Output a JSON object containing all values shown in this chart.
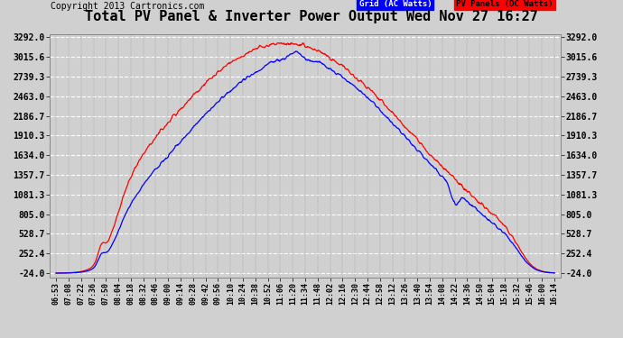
{
  "title": "Total PV Panel & Inverter Power Output Wed Nov 27 16:27",
  "copyright": "Copyright 2013 Cartronics.com",
  "legend_blue": "Grid (AC Watts)",
  "legend_red": "PV Panels (DC Watts)",
  "yticks": [
    -24.0,
    252.4,
    528.7,
    805.0,
    1081.3,
    1357.7,
    1634.0,
    1910.3,
    2186.7,
    2463.0,
    2739.3,
    3015.6,
    3292.0
  ],
  "ylim": [
    -24.0,
    3292.0
  ],
  "xtick_labels": [
    "06:53",
    "07:08",
    "07:22",
    "07:36",
    "07:50",
    "08:04",
    "08:18",
    "08:32",
    "08:46",
    "09:00",
    "09:14",
    "09:28",
    "09:42",
    "09:56",
    "10:10",
    "10:24",
    "10:38",
    "10:52",
    "11:06",
    "11:20",
    "11:34",
    "11:48",
    "12:02",
    "12:16",
    "12:30",
    "12:44",
    "12:58",
    "13:12",
    "13:26",
    "13:40",
    "13:54",
    "14:08",
    "14:22",
    "14:36",
    "14:50",
    "15:04",
    "15:18",
    "15:32",
    "15:46",
    "16:00",
    "16:14"
  ],
  "color_blue": "#0000ff",
  "color_red": "#ff0000",
  "bg_color": "#d0d0d0",
  "grid_color": "#ffffff",
  "title_color": "#000000",
  "title_fontsize": 11,
  "copyright_fontsize": 7
}
